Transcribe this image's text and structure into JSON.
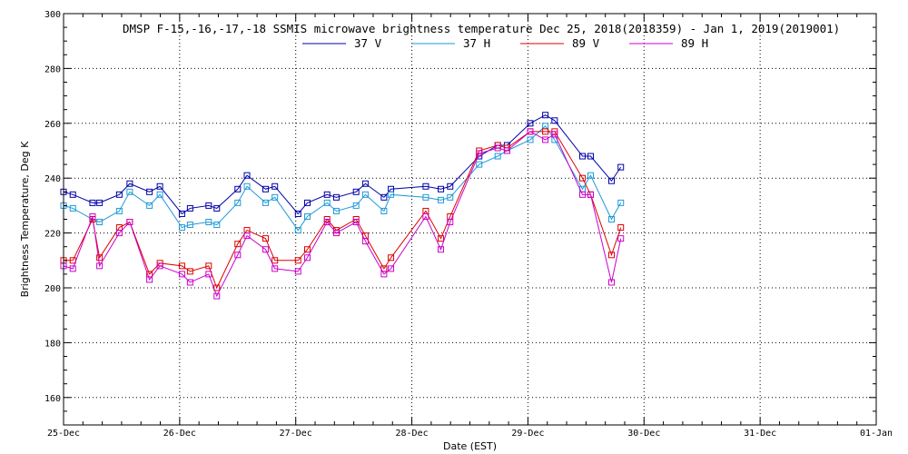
{
  "chart_data": {
    "type": "line",
    "title": "DMSP F-15,-16,-17,-18 SSMIS microwave brightness temperature Dec 25, 2018(2018359) - Jan  1, 2019(2019001)",
    "xlabel": "Date (EST)",
    "ylabel": "Brightness Temperature, Deg K",
    "xlim": [
      0,
      7
    ],
    "ylim": [
      150,
      300
    ],
    "grid": true,
    "legend_position": "top-center",
    "x_ticks": [
      {
        "value": 0,
        "label": "25-Dec"
      },
      {
        "value": 1,
        "label": "26-Dec"
      },
      {
        "value": 2,
        "label": "27-Dec"
      },
      {
        "value": 3,
        "label": "28-Dec"
      },
      {
        "value": 4,
        "label": "29-Dec"
      },
      {
        "value": 5,
        "label": "30-Dec"
      },
      {
        "value": 6,
        "label": "31-Dec"
      },
      {
        "value": 7,
        "label": "01-Jan"
      }
    ],
    "y_ticks": [
      {
        "value": 160,
        "label": "160"
      },
      {
        "value": 180,
        "label": "180"
      },
      {
        "value": 200,
        "label": "200"
      },
      {
        "value": 220,
        "label": "220"
      },
      {
        "value": 240,
        "label": "240"
      },
      {
        "value": 260,
        "label": "260"
      },
      {
        "value": 280,
        "label": "280"
      },
      {
        "value": 300,
        "label": "300"
      }
    ],
    "x": [
      0.0,
      0.08,
      0.25,
      0.31,
      0.48,
      0.57,
      0.74,
      0.83,
      1.02,
      1.09,
      1.25,
      1.32,
      1.5,
      1.58,
      1.74,
      1.82,
      2.02,
      2.1,
      2.27,
      2.35,
      2.52,
      2.6,
      2.76,
      2.82,
      3.12,
      3.25,
      3.33,
      3.58,
      3.74,
      3.82,
      4.02,
      4.15,
      4.23,
      4.47,
      4.54,
      4.72,
      4.8
    ],
    "series": [
      {
        "name": "37 V",
        "color": "#0000aa",
        "values": [
          235,
          234,
          231,
          231,
          234,
          238,
          235,
          237,
          227,
          229,
          230,
          229,
          236,
          241,
          236,
          237,
          227,
          231,
          234,
          233,
          235,
          238,
          233,
          236,
          237,
          236,
          237,
          248,
          252,
          252,
          260,
          263,
          261,
          248,
          248,
          239,
          244
        ]
      },
      {
        "name": "37 H",
        "color": "#1e9ad6",
        "values": [
          230,
          229,
          225,
          224,
          228,
          235,
          230,
          234,
          222,
          223,
          224,
          223,
          231,
          237,
          231,
          233,
          221,
          226,
          231,
          228,
          230,
          234,
          228,
          234,
          233,
          232,
          233,
          245,
          248,
          250,
          254,
          259,
          254,
          236,
          241,
          225,
          231
        ]
      },
      {
        "name": "89 V",
        "color": "#dd0000",
        "values": [
          210,
          210,
          225,
          211,
          222,
          224,
          205,
          209,
          208,
          206,
          208,
          200,
          216,
          221,
          218,
          210,
          210,
          214,
          225,
          221,
          225,
          219,
          207,
          211,
          228,
          218,
          226,
          250,
          252,
          251,
          257,
          257,
          257,
          240,
          234,
          212,
          222
        ]
      },
      {
        "name": "89 H",
        "color": "#cc00cc",
        "values": [
          208,
          207,
          226,
          208,
          220,
          224,
          203,
          208,
          205,
          202,
          205,
          197,
          212,
          219,
          214,
          207,
          206,
          211,
          224,
          220,
          224,
          217,
          205,
          207,
          226,
          214,
          224,
          249,
          251,
          250,
          257,
          254,
          256,
          234,
          234,
          202,
          218
        ]
      }
    ]
  }
}
